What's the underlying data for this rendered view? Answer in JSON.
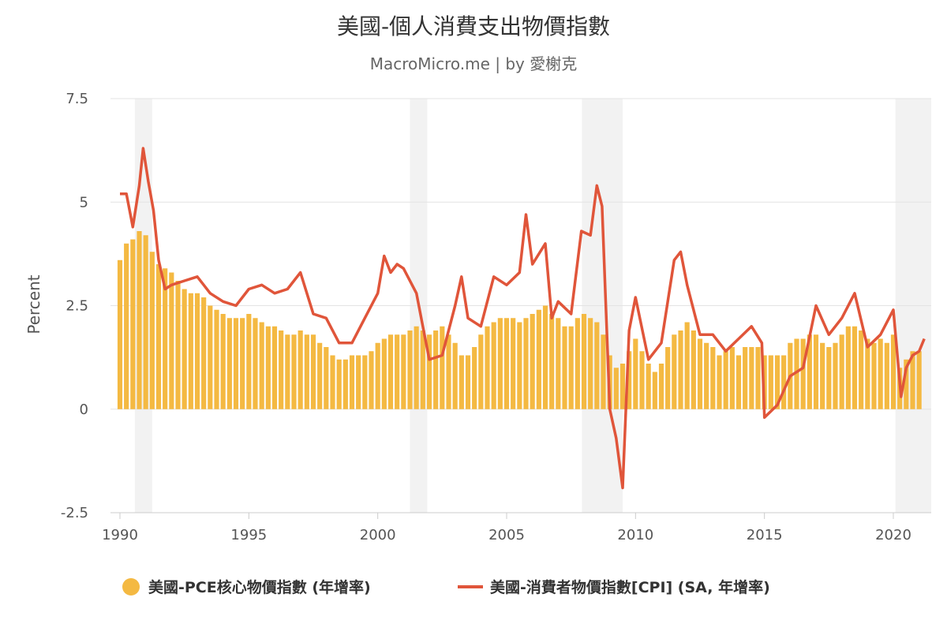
{
  "chart_data": {
    "type": "bar+line",
    "title": "美國-個人消費支出物價指數",
    "subtitle": "MacroMicro.me | by 愛榭克",
    "ylabel": "Percent",
    "ylim": [
      -2.5,
      7.5
    ],
    "yticks": [
      "-2.5",
      "0",
      "2.5",
      "5",
      "7.5"
    ],
    "xlim": [
      1990.0,
      2021.7
    ],
    "xticks": [
      "1990",
      "1995",
      "2000",
      "2005",
      "2010",
      "2015",
      "2020"
    ],
    "grid": true,
    "legend_position": "bottom",
    "recessions": [
      [
        1990.58,
        1991.25
      ],
      [
        2001.25,
        2001.92
      ],
      [
        2007.92,
        2009.5
      ],
      [
        2020.08,
        2021.7
      ]
    ],
    "series": [
      {
        "name": "美國-PCE核心物價指數 (年增率)",
        "kind": "bar",
        "color": "#f4b942",
        "x": [
          1990.0,
          1990.25,
          1990.5,
          1990.75,
          1991.0,
          1991.25,
          1991.5,
          1991.75,
          1992.0,
          1992.25,
          1992.5,
          1992.75,
          1993.0,
          1993.25,
          1993.5,
          1993.75,
          1994.0,
          1994.25,
          1994.5,
          1994.75,
          1995.0,
          1995.25,
          1995.5,
          1995.75,
          1996.0,
          1996.25,
          1996.5,
          1996.75,
          1997.0,
          1997.25,
          1997.5,
          1997.75,
          1998.0,
          1998.25,
          1998.5,
          1998.75,
          1999.0,
          1999.25,
          1999.5,
          1999.75,
          2000.0,
          2000.25,
          2000.5,
          2000.75,
          2001.0,
          2001.25,
          2001.5,
          2001.75,
          2002.0,
          2002.25,
          2002.5,
          2002.75,
          2003.0,
          2003.25,
          2003.5,
          2003.75,
          2004.0,
          2004.25,
          2004.5,
          2004.75,
          2005.0,
          2005.25,
          2005.5,
          2005.75,
          2006.0,
          2006.25,
          2006.5,
          2006.75,
          2007.0,
          2007.25,
          2007.5,
          2007.75,
          2008.0,
          2008.25,
          2008.5,
          2008.75,
          2009.0,
          2009.25,
          2009.5,
          2009.75,
          2010.0,
          2010.25,
          2010.5,
          2010.75,
          2011.0,
          2011.25,
          2011.5,
          2011.75,
          2012.0,
          2012.25,
          2012.5,
          2012.75,
          2013.0,
          2013.25,
          2013.5,
          2013.75,
          2014.0,
          2014.25,
          2014.5,
          2014.75,
          2015.0,
          2015.25,
          2015.5,
          2015.75,
          2016.0,
          2016.25,
          2016.5,
          2016.75,
          2017.0,
          2017.25,
          2017.5,
          2017.75,
          2018.0,
          2018.25,
          2018.5,
          2018.75,
          2019.0,
          2019.25,
          2019.5,
          2019.75,
          2020.0,
          2020.25,
          2020.5,
          2020.75,
          2021.0
        ],
        "values": [
          3.6,
          4.0,
          4.1,
          4.3,
          4.2,
          3.8,
          3.5,
          3.4,
          3.3,
          3.1,
          2.9,
          2.8,
          2.8,
          2.7,
          2.5,
          2.4,
          2.3,
          2.2,
          2.2,
          2.2,
          2.3,
          2.2,
          2.1,
          2.0,
          2.0,
          1.9,
          1.8,
          1.8,
          1.9,
          1.8,
          1.8,
          1.6,
          1.5,
          1.3,
          1.2,
          1.2,
          1.3,
          1.3,
          1.3,
          1.4,
          1.6,
          1.7,
          1.8,
          1.8,
          1.8,
          1.9,
          2.0,
          1.9,
          1.8,
          1.9,
          2.0,
          1.8,
          1.6,
          1.3,
          1.3,
          1.5,
          1.8,
          2.0,
          2.1,
          2.2,
          2.2,
          2.2,
          2.1,
          2.2,
          2.3,
          2.4,
          2.5,
          2.3,
          2.2,
          2.0,
          2.0,
          2.2,
          2.3,
          2.2,
          2.1,
          1.8,
          1.3,
          1.0,
          1.1,
          1.4,
          1.7,
          1.4,
          1.1,
          0.9,
          1.1,
          1.5,
          1.8,
          1.9,
          2.1,
          1.9,
          1.7,
          1.6,
          1.5,
          1.3,
          1.4,
          1.5,
          1.3,
          1.5,
          1.5,
          1.5,
          1.3,
          1.3,
          1.3,
          1.3,
          1.6,
          1.7,
          1.7,
          1.8,
          1.8,
          1.6,
          1.5,
          1.6,
          1.8,
          2.0,
          2.0,
          1.9,
          1.7,
          1.6,
          1.7,
          1.6,
          1.8,
          1.0,
          1.2,
          1.4,
          1.4
        ]
      },
      {
        "name": "美國-消費者物價指數[CPI] (SA, 年增率)",
        "kind": "line",
        "color": "#e0553a",
        "x": [
          1990.0,
          1990.25,
          1990.5,
          1990.75,
          1990.9,
          1991.1,
          1991.3,
          1991.5,
          1991.75,
          1992.0,
          1992.5,
          1993.0,
          1993.5,
          1994.0,
          1994.5,
          1995.0,
          1995.5,
          1996.0,
          1996.5,
          1997.0,
          1997.5,
          1998.0,
          1998.5,
          1999.0,
          1999.5,
          2000.0,
          2000.25,
          2000.5,
          2000.75,
          2001.0,
          2001.5,
          2001.75,
          2002.0,
          2002.5,
          2003.0,
          2003.25,
          2003.5,
          2004.0,
          2004.5,
          2005.0,
          2005.5,
          2005.75,
          2006.0,
          2006.5,
          2006.75,
          2007.0,
          2007.5,
          2007.9,
          2008.25,
          2008.5,
          2008.7,
          2009.0,
          2009.25,
          2009.5,
          2009.75,
          2010.0,
          2010.5,
          2011.0,
          2011.5,
          2011.75,
          2012.0,
          2012.5,
          2013.0,
          2013.5,
          2014.0,
          2014.5,
          2014.9,
          2015.0,
          2015.5,
          2016.0,
          2016.5,
          2017.0,
          2017.5,
          2018.0,
          2018.5,
          2019.0,
          2019.5,
          2020.0,
          2020.3,
          2020.5,
          2020.75,
          2021.0,
          2021.2
        ],
        "values": [
          5.2,
          5.2,
          4.4,
          5.4,
          6.3,
          5.5,
          4.8,
          3.6,
          2.9,
          3.0,
          3.1,
          3.2,
          2.8,
          2.6,
          2.5,
          2.9,
          3.0,
          2.8,
          2.9,
          3.3,
          2.3,
          2.2,
          1.6,
          1.6,
          2.2,
          2.8,
          3.7,
          3.3,
          3.5,
          3.4,
          2.8,
          2.0,
          1.2,
          1.3,
          2.5,
          3.2,
          2.2,
          2.0,
          3.2,
          3.0,
          3.3,
          4.7,
          3.5,
          4.0,
          2.2,
          2.6,
          2.3,
          4.3,
          4.2,
          5.4,
          4.9,
          0.0,
          -0.7,
          -1.9,
          1.9,
          2.7,
          1.2,
          1.6,
          3.6,
          3.8,
          3.0,
          1.8,
          1.8,
          1.4,
          1.7,
          2.0,
          1.6,
          -0.2,
          0.1,
          0.8,
          1.0,
          2.5,
          1.8,
          2.2,
          2.8,
          1.5,
          1.8,
          2.4,
          0.3,
          1.0,
          1.3,
          1.4,
          1.7
        ]
      }
    ]
  }
}
